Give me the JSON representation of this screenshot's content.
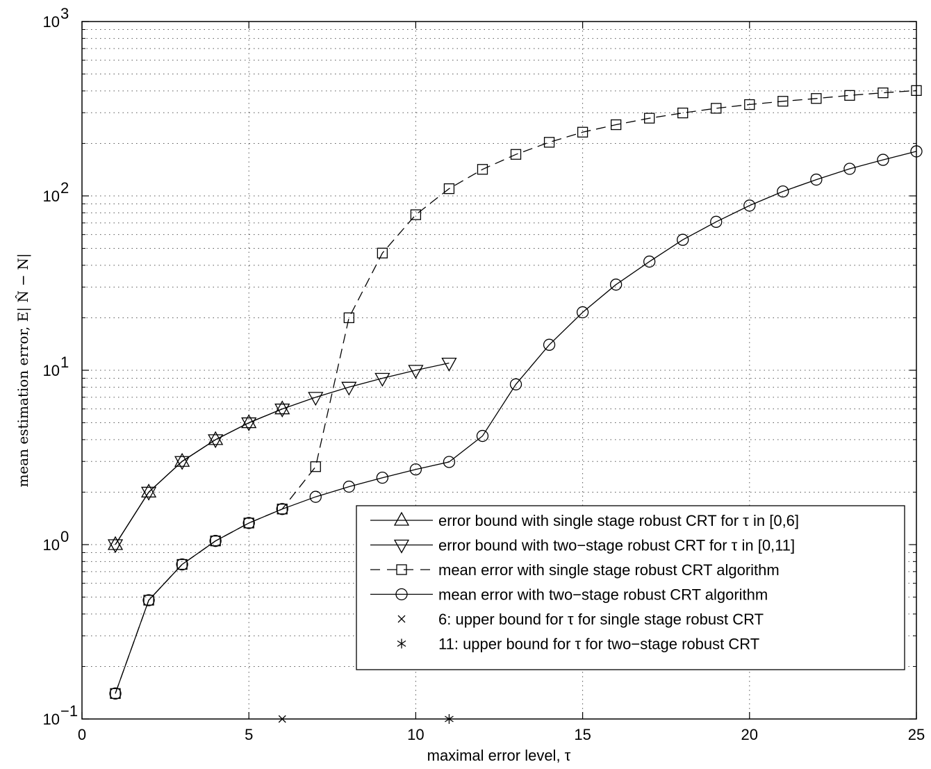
{
  "chart_data": {
    "type": "line",
    "xlabel": "maximal error level, τ",
    "ylabel": "mean estimation error,  E| N̂ − N|",
    "xscale": "linear",
    "yscale": "log",
    "xlim": [
      0,
      25
    ],
    "ylim": [
      0.1,
      1000
    ],
    "grid": "on (dotted, including minor log grid)",
    "legend_placement": "bottom-right",
    "x_ticks": [
      "0",
      "5",
      "10",
      "15",
      "20",
      "25"
    ],
    "y_ticks": [
      {
        "base": "10",
        "exp": "−1"
      },
      {
        "base": "10",
        "exp": "0"
      },
      {
        "base": "10",
        "exp": "1"
      },
      {
        "base": "10",
        "exp": "2"
      },
      {
        "base": "10",
        "exp": "3"
      }
    ],
    "series": [
      {
        "name": "error bound with single stage robust CRT for τ in [0,6]",
        "marker": "triangle-up",
        "line": "solid",
        "color": "#000000",
        "x": [
          1,
          2,
          3,
          4,
          5,
          6
        ],
        "y": [
          1,
          2,
          3,
          4,
          5,
          6
        ]
      },
      {
        "name": "error bound with two−stage robust CRT for τ in [0,11]",
        "marker": "triangle-down",
        "line": "solid",
        "color": "#000000",
        "x": [
          1,
          2,
          3,
          4,
          5,
          6,
          7,
          8,
          9,
          10,
          11
        ],
        "y": [
          1,
          2,
          3,
          4,
          5,
          6,
          7,
          8,
          9,
          10,
          11
        ]
      },
      {
        "name": "mean error with single stage robust CRT algorithm",
        "marker": "square",
        "line": "dashed",
        "color": "#000000",
        "x": [
          1,
          2,
          3,
          4,
          5,
          6,
          7,
          8,
          9,
          10,
          11,
          12,
          13,
          14,
          15,
          16,
          17,
          18,
          19,
          20,
          21,
          22,
          23,
          24,
          25
        ],
        "y": [
          0.14,
          0.48,
          0.77,
          1.05,
          1.33,
          1.6,
          2.8,
          20,
          47,
          78,
          110,
          142,
          173,
          203,
          232,
          256,
          279,
          299,
          318,
          334,
          349,
          362,
          377,
          390,
          402
        ]
      },
      {
        "name": "mean error with two−stage robust CRT algorithm",
        "marker": "circle",
        "line": "solid",
        "color": "#000000",
        "x": [
          1,
          2,
          3,
          4,
          5,
          6,
          7,
          8,
          9,
          10,
          11,
          12,
          13,
          14,
          15,
          16,
          17,
          18,
          19,
          20,
          21,
          22,
          23,
          24,
          25
        ],
        "y": [
          0.14,
          0.48,
          0.77,
          1.05,
          1.33,
          1.6,
          1.88,
          2.15,
          2.42,
          2.7,
          2.98,
          4.2,
          8.3,
          14,
          21.5,
          31,
          42,
          56,
          71,
          88,
          106,
          124,
          143,
          161,
          180
        ]
      },
      {
        "name": "6: upper bound for τ for single stage robust CRT",
        "marker": "x",
        "line": "none",
        "color": "#000000",
        "x": [
          6
        ],
        "y": [
          0.1
        ]
      },
      {
        "name": "11: upper bound for τ for two−stage robust CRT",
        "marker": "asterisk",
        "line": "none",
        "color": "#000000",
        "x": [
          11
        ],
        "y": [
          0.1
        ]
      }
    ]
  }
}
